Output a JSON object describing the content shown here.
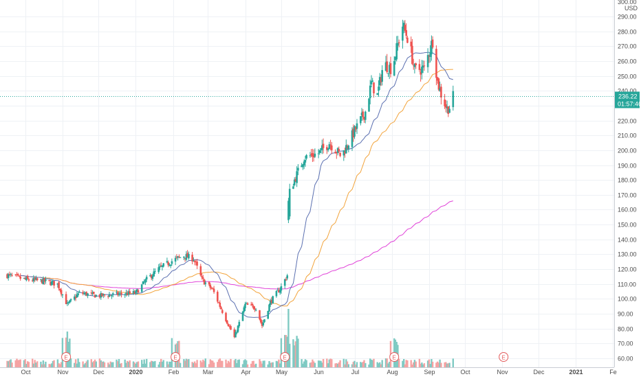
{
  "axis": {
    "top_label": "300.00",
    "currency": "USD",
    "price_ticks": [
      290,
      280,
      270,
      260,
      250,
      240,
      230,
      220,
      210,
      200,
      190,
      180,
      170,
      160,
      150,
      140,
      130,
      120,
      110,
      100,
      90,
      80,
      70,
      60
    ],
    "time_ticks": [
      {
        "label": "Oct",
        "bold": false
      },
      {
        "label": "Nov",
        "bold": false
      },
      {
        "label": "Dec",
        "bold": false
      },
      {
        "label": "2020",
        "bold": true
      },
      {
        "label": "Feb",
        "bold": false
      },
      {
        "label": "Mar",
        "bold": false
      },
      {
        "label": "Apr",
        "bold": false
      },
      {
        "label": "May",
        "bold": false
      },
      {
        "label": "Jun",
        "bold": false
      },
      {
        "label": "Jul",
        "bold": false
      },
      {
        "label": "Aug",
        "bold": false
      },
      {
        "label": "Sep",
        "bold": false
      },
      {
        "label": "Oct",
        "bold": false
      },
      {
        "label": "Nov",
        "bold": false
      },
      {
        "label": "Dec",
        "bold": false
      },
      {
        "label": "2021",
        "bold": true
      },
      {
        "label": "Fe",
        "bold": false
      }
    ]
  },
  "last_price": {
    "label": "236.22",
    "countdown": "01:57:46",
    "value": 236.22
  },
  "colors": {
    "up": "#26a69a",
    "down": "#ef5350",
    "vol_up": "#7fcac3",
    "vol_down": "#f5a3a3",
    "ma_fast": "#5a6fb0",
    "ma_mid": "#f2a33a",
    "ma_slow": "#e040d8",
    "grid": "#eef1f5",
    "badge": "#26a69a",
    "earnings": "#e35b5b"
  },
  "chart_data": {
    "type": "candlestick",
    "series": [
      {
        "name": "",
        "kind": "moving-average-fast"
      },
      {
        "name": "",
        "kind": "moving-average-mid"
      },
      {
        "name": "",
        "kind": "moving-average-slow"
      },
      {
        "name": "",
        "kind": "volume"
      }
    ],
    "anchors": [
      [
        "2019-09-16",
        116
      ],
      [
        "2019-10-01",
        113
      ],
      [
        "2019-10-15",
        112
      ],
      [
        "2019-10-28",
        110
      ],
      [
        "2019-11-05",
        96
      ],
      [
        "2019-11-15",
        104
      ],
      [
        "2019-12-01",
        102
      ],
      [
        "2019-12-16",
        103
      ],
      [
        "2020-01-01",
        104
      ],
      [
        "2020-01-10",
        113
      ],
      [
        "2020-01-20",
        120
      ],
      [
        "2020-02-01",
        126
      ],
      [
        "2020-02-10",
        129
      ],
      [
        "2020-02-18",
        127
      ],
      [
        "2020-02-25",
        113
      ],
      [
        "2020-03-05",
        106
      ],
      [
        "2020-03-15",
        88
      ],
      [
        "2020-03-23",
        74
      ],
      [
        "2020-04-01",
        96
      ],
      [
        "2020-04-10",
        94
      ],
      [
        "2020-04-15",
        82
      ],
      [
        "2020-04-22",
        98
      ],
      [
        "2020-05-01",
        108
      ],
      [
        "2020-05-06",
        116
      ],
      [
        "2020-05-07",
        155
      ],
      [
        "2020-05-08",
        172
      ],
      [
        "2020-05-12",
        180
      ],
      [
        "2020-05-20",
        195
      ],
      [
        "2020-06-01",
        198
      ],
      [
        "2020-06-10",
        205
      ],
      [
        "2020-06-20",
        196
      ],
      [
        "2020-07-01",
        213
      ],
      [
        "2020-07-10",
        226
      ],
      [
        "2020-07-15",
        245
      ],
      [
        "2020-07-20",
        237
      ],
      [
        "2020-07-25",
        258
      ],
      [
        "2020-08-01",
        255
      ],
      [
        "2020-08-05",
        268
      ],
      [
        "2020-08-10",
        284
      ],
      [
        "2020-08-15",
        274
      ],
      [
        "2020-08-20",
        254
      ],
      [
        "2020-08-28",
        255
      ],
      [
        "2020-09-01",
        266
      ],
      [
        "2020-09-04",
        274
      ],
      [
        "2020-09-08",
        246
      ],
      [
        "2020-09-12",
        235
      ],
      [
        "2020-09-16",
        228
      ],
      [
        "2020-09-18",
        229
      ],
      [
        "2020-09-21",
        236
      ]
    ],
    "earnings_dates": [
      "2019-11-04",
      "2020-02-03",
      "2020-05-04",
      "2020-08-03",
      "2020-11-02"
    ],
    "ylim": [
      55,
      300
    ],
    "xlim": [
      "2019-09-10",
      "2021-02-02"
    ]
  }
}
